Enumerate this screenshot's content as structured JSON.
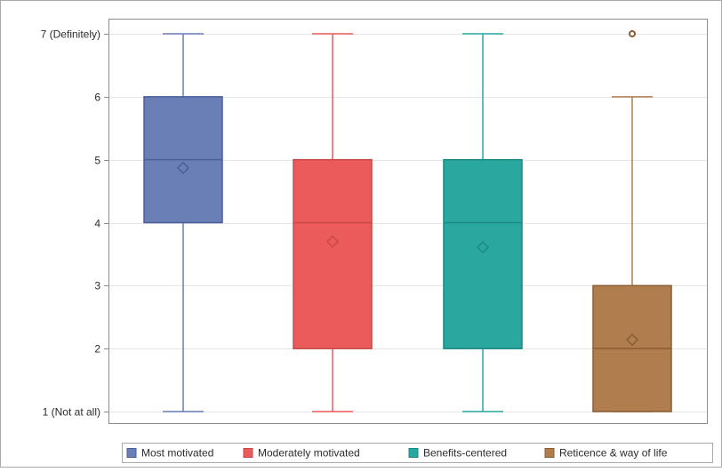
{
  "chart_data": {
    "type": "boxplot",
    "y_ticks": [
      {
        "value": 1,
        "label": "1 (Not at all)"
      },
      {
        "value": 2,
        "label": "2"
      },
      {
        "value": 3,
        "label": "3"
      },
      {
        "value": 4,
        "label": "4"
      },
      {
        "value": 5,
        "label": "5"
      },
      {
        "value": 6,
        "label": "6"
      },
      {
        "value": 7,
        "label": "7 (Definitely)"
      }
    ],
    "ylim": [
      1,
      7
    ],
    "grid": true,
    "legend_position": "bottom",
    "series": [
      {
        "name": "Most motivated",
        "color": "#6a7fb5",
        "edge": "#4a5f9a",
        "min": 1,
        "q1": 4,
        "median": 5,
        "q3": 6,
        "max": 7,
        "mean": 4.87,
        "outliers": []
      },
      {
        "name": "Moderately motivated",
        "color": "#ec5b5b",
        "edge": "#c84848",
        "min": 1,
        "q1": 2,
        "median": 4,
        "q3": 5,
        "max": 7,
        "mean": 3.7,
        "outliers": []
      },
      {
        "name": "Benefits-centered",
        "color": "#2aa8a0",
        "edge": "#1b8880",
        "min": 1,
        "q1": 2,
        "median": 4,
        "q3": 5,
        "max": 7,
        "mean": 3.61,
        "outliers": []
      },
      {
        "name": "Reticence & way of life",
        "color": "#b07d4f",
        "edge": "#8a5c34",
        "min": 1,
        "q1": 1,
        "median": 2,
        "q3": 3,
        "max": 6,
        "mean": 2.14,
        "outliers": [
          7
        ]
      }
    ]
  }
}
